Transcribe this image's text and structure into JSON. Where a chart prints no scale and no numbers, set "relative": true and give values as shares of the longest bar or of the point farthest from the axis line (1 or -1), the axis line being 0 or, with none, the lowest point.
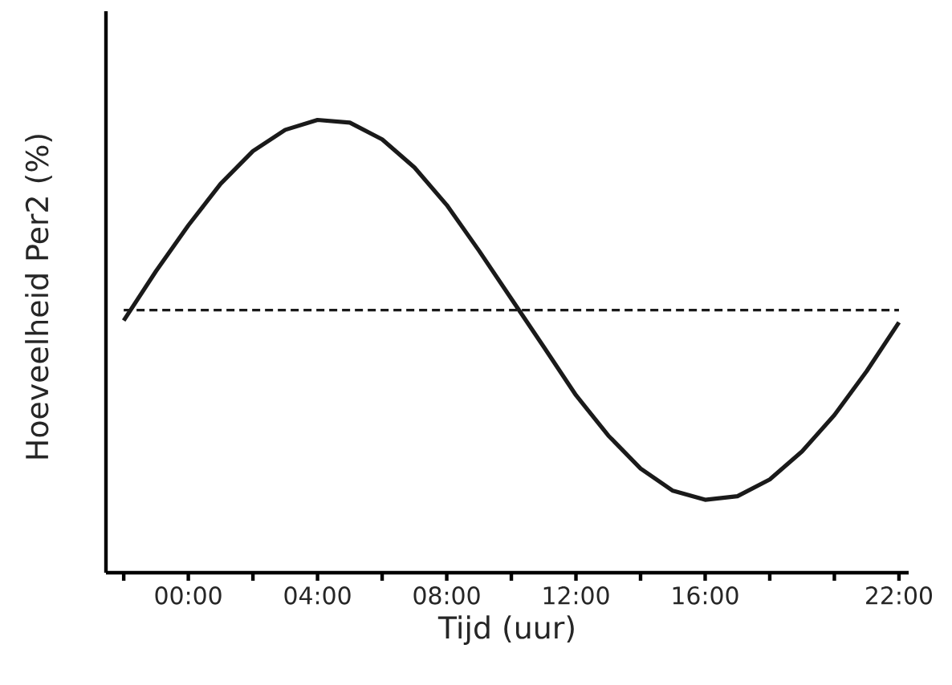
{
  "chart_data": {
    "type": "line",
    "relative": true,
    "xlabel": "Tijd (uur)",
    "ylabel": "Hoeveelheid Per2 (%)",
    "xlim": [
      -2.55,
      22.3
    ],
    "xticks": [
      {
        "value": -2,
        "label": null
      },
      {
        "value": 0,
        "label": "00:00"
      },
      {
        "value": 2,
        "label": null
      },
      {
        "value": 4,
        "label": "04:00"
      },
      {
        "value": 6,
        "label": null
      },
      {
        "value": 8,
        "label": "08:00"
      },
      {
        "value": 10,
        "label": null
      },
      {
        "value": 12,
        "label": "12:00"
      },
      {
        "value": 14,
        "label": null
      },
      {
        "value": 16,
        "label": "16:00"
      },
      {
        "value": 18,
        "label": null
      },
      {
        "value": 20,
        "label": null
      },
      {
        "value": 22,
        "label": "22:00"
      }
    ],
    "tick_labels": "x",
    "grid": false,
    "marker": "none",
    "line_style": "solid",
    "series": [
      {
        "color": "#1a1a1a",
        "x": [
          -2,
          -1,
          0,
          1,
          2,
          3,
          4,
          5,
          6,
          7,
          8,
          9,
          10,
          11,
          12,
          13,
          14,
          15,
          16,
          17,
          18,
          19,
          20,
          21,
          22
        ],
        "values": [
          0.557,
          0.666,
          0.767,
          0.859,
          0.931,
          0.978,
          1,
          0.994,
          0.957,
          0.895,
          0.812,
          0.711,
          0.605,
          0.499,
          0.392,
          0.303,
          0.23,
          0.181,
          0.161,
          0.169,
          0.206,
          0.268,
          0.348,
          0.445,
          0.553
        ]
      }
    ],
    "ref_lines": [
      {
        "axis": "y",
        "value": 0.58,
        "line_style": "dashed",
        "color": "#1a1a1a"
      }
    ]
  }
}
